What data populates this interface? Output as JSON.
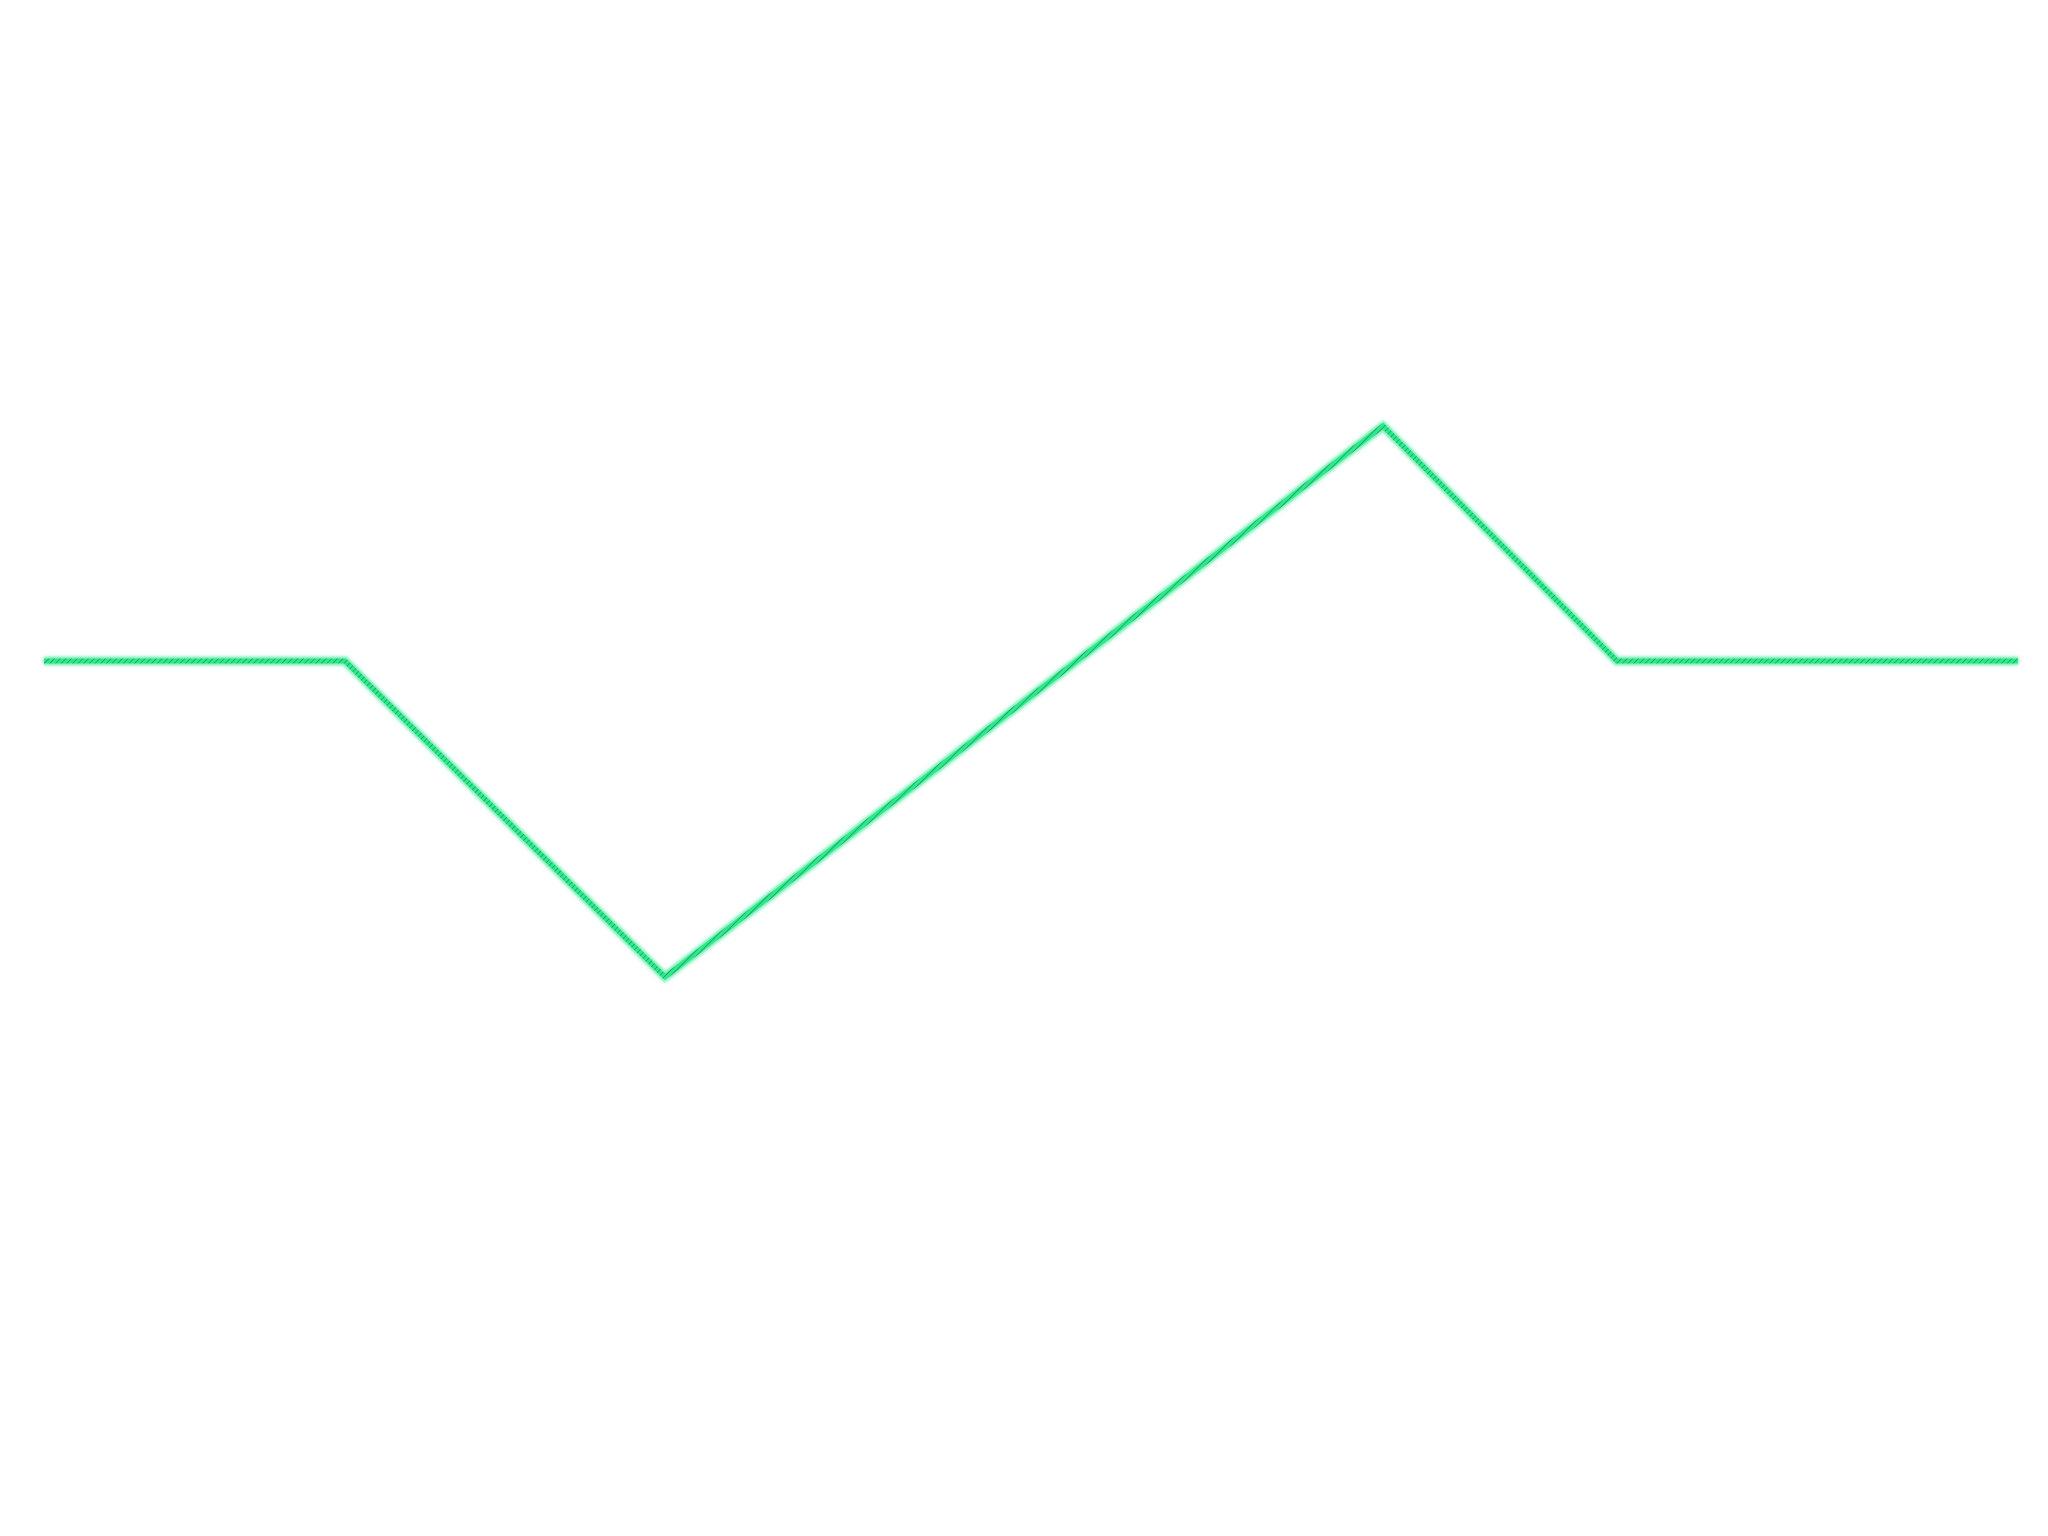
{
  "diagram": {
    "type": "polyline",
    "stroke_color": "#2ee88a",
    "stroke_dark_color": "#0f8a55",
    "background": "#ffffff",
    "has_text": false,
    "segments": [
      "flat",
      "descending",
      "ascending",
      "descending",
      "flat"
    ]
  }
}
